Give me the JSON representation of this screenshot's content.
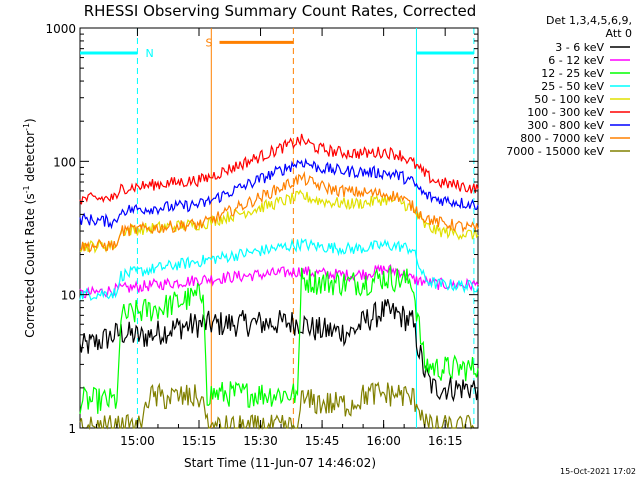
{
  "chart_data": {
    "type": "line",
    "title": "RHESSI Observing Summary Count Rates, Corrected",
    "xlabel": "Start Time (11-Jun-07 14:46:02)",
    "ylabel_main": "Corrected Count Rate (s",
    "ylabel_sup1": "-1",
    "ylabel_mid": " detector",
    "ylabel_sup2": "-1",
    "ylabel_end": ")",
    "x_unit": "minutes since 14:46:02",
    "xlim": [
      0,
      97
    ],
    "ylim": [
      1,
      1000
    ],
    "yscale": "log",
    "x_ticks": [
      {
        "value": 14,
        "label": "15:00"
      },
      {
        "value": 29,
        "label": "15:15"
      },
      {
        "value": 44,
        "label": "15:30"
      },
      {
        "value": 59,
        "label": "15:45"
      },
      {
        "value": 74,
        "label": "16:00"
      },
      {
        "value": 89,
        "label": "16:15"
      }
    ],
    "y_ticks": [
      {
        "value": 1,
        "label": "1"
      },
      {
        "value": 10,
        "label": "10"
      },
      {
        "value": 100,
        "label": "100"
      },
      {
        "value": 1000,
        "label": "1000"
      }
    ],
    "legend_header": [
      "Det 1,3,4,5,6,9,",
      "Att 0"
    ],
    "legend_position": "right",
    "series": [
      {
        "name": "3 - 6 keV",
        "color": "#000000",
        "points": [
          [
            0,
            4
          ],
          [
            5,
            4.5
          ],
          [
            10,
            5.2
          ],
          [
            15,
            4.8
          ],
          [
            20,
            5.3
          ],
          [
            25,
            5.8
          ],
          [
            30,
            6
          ],
          [
            54,
            6.2
          ],
          [
            57,
            5.5
          ],
          [
            62,
            5.3
          ],
          [
            66,
            5.2
          ],
          [
            70,
            6.5
          ],
          [
            74,
            7.5
          ],
          [
            78,
            7
          ],
          [
            81,
            6.2
          ],
          [
            84,
            2.6
          ],
          [
            86,
            2
          ],
          [
            97,
            2
          ]
        ]
      },
      {
        "name": "6 - 12 keV",
        "color": "#ff00ff",
        "points": [
          [
            0,
            10
          ],
          [
            5,
            10.5
          ],
          [
            10,
            11
          ],
          [
            15,
            11.5
          ],
          [
            20,
            12
          ],
          [
            25,
            12.5
          ],
          [
            30,
            13
          ],
          [
            54,
            15
          ],
          [
            58,
            14.5
          ],
          [
            62,
            14.2
          ],
          [
            66,
            14
          ],
          [
            70,
            14.5
          ],
          [
            74,
            15.5
          ],
          [
            78,
            15
          ],
          [
            81,
            13
          ],
          [
            84,
            12.5
          ],
          [
            87,
            12
          ],
          [
            97,
            11.8
          ]
        ]
      },
      {
        "name": "12 - 25 keV",
        "color": "#00ff00",
        "points": [
          [
            0,
            1.6
          ],
          [
            9,
            1.6
          ],
          [
            10,
            6.8
          ],
          [
            15,
            7.5
          ],
          [
            20,
            8
          ],
          [
            25,
            9
          ],
          [
            30,
            10
          ],
          [
            31,
            1.8
          ],
          [
            53,
            1.8
          ],
          [
            54,
            13
          ],
          [
            58,
            12.5
          ],
          [
            62,
            12.3
          ],
          [
            66,
            12.2
          ],
          [
            70,
            12.5
          ],
          [
            74,
            13.5
          ],
          [
            78,
            13
          ],
          [
            81,
            12.5
          ],
          [
            84,
            3
          ],
          [
            87,
            2.8
          ],
          [
            97,
            2.8
          ]
        ]
      },
      {
        "name": "25 - 50 keV",
        "color": "#00ffff",
        "points": [
          [
            0,
            10
          ],
          [
            9,
            10.3
          ],
          [
            10,
            14
          ],
          [
            15,
            15
          ],
          [
            20,
            16
          ],
          [
            25,
            17
          ],
          [
            30,
            18
          ],
          [
            54,
            24
          ],
          [
            58,
            23
          ],
          [
            62,
            22.5
          ],
          [
            66,
            22
          ],
          [
            70,
            22.5
          ],
          [
            74,
            23.5
          ],
          [
            78,
            23
          ],
          [
            81,
            22
          ],
          [
            84,
            13
          ],
          [
            87,
            12
          ],
          [
            97,
            11.5
          ]
        ]
      },
      {
        "name": "50 - 100 keV",
        "color": "#e0e000",
        "points": [
          [
            0,
            23
          ],
          [
            9,
            23.5
          ],
          [
            10,
            30
          ],
          [
            15,
            31
          ],
          [
            20,
            32
          ],
          [
            25,
            33
          ],
          [
            30,
            34
          ],
          [
            54,
            55
          ],
          [
            58,
            51
          ],
          [
            62,
            49
          ],
          [
            66,
            48
          ],
          [
            70,
            49
          ],
          [
            74,
            52
          ],
          [
            78,
            50
          ],
          [
            81,
            44
          ],
          [
            84,
            33
          ],
          [
            87,
            30
          ],
          [
            97,
            28
          ]
        ]
      },
      {
        "name": "100 - 300 keV",
        "color": "#ff0000",
        "points": [
          [
            0,
            52
          ],
          [
            9,
            53
          ],
          [
            10,
            63
          ],
          [
            15,
            65
          ],
          [
            20,
            68
          ],
          [
            25,
            70
          ],
          [
            30,
            73
          ],
          [
            54,
            145
          ],
          [
            58,
            125
          ],
          [
            62,
            118
          ],
          [
            66,
            115
          ],
          [
            70,
            115
          ],
          [
            74,
            118
          ],
          [
            78,
            112
          ],
          [
            81,
            98
          ],
          [
            84,
            80
          ],
          [
            87,
            70
          ],
          [
            97,
            62
          ]
        ]
      },
      {
        "name": "300 - 800 keV",
        "color": "#0000ff",
        "points": [
          [
            0,
            37
          ],
          [
            9,
            35
          ],
          [
            10,
            43
          ],
          [
            15,
            44
          ],
          [
            20,
            45
          ],
          [
            25,
            46
          ],
          [
            30,
            48
          ],
          [
            54,
            100
          ],
          [
            58,
            90
          ],
          [
            62,
            86
          ],
          [
            66,
            84
          ],
          [
            70,
            83
          ],
          [
            74,
            82
          ],
          [
            78,
            78
          ],
          [
            81,
            70
          ],
          [
            84,
            56
          ],
          [
            87,
            52
          ],
          [
            97,
            47
          ]
        ]
      },
      {
        "name": "800 - 7000 keV",
        "color": "#ff8000",
        "points": [
          [
            0,
            23
          ],
          [
            9,
            23.5
          ],
          [
            10,
            30
          ],
          [
            15,
            31
          ],
          [
            20,
            32
          ],
          [
            25,
            33
          ],
          [
            30,
            34
          ],
          [
            54,
            75
          ],
          [
            58,
            66
          ],
          [
            62,
            61
          ],
          [
            66,
            59
          ],
          [
            70,
            58
          ],
          [
            74,
            57
          ],
          [
            78,
            54
          ],
          [
            81,
            46
          ],
          [
            84,
            38
          ],
          [
            87,
            35
          ],
          [
            97,
            31
          ]
        ]
      },
      {
        "name": "7000 - 15000 keV",
        "color": "#808000",
        "points": [
          [
            0,
            1
          ],
          [
            15,
            1
          ],
          [
            16,
            1.7
          ],
          [
            20,
            1.7
          ],
          [
            25,
            1.7
          ],
          [
            30,
            1.7
          ],
          [
            31,
            1
          ],
          [
            53,
            1
          ],
          [
            54,
            1.6
          ],
          [
            62,
            1.5
          ],
          [
            66,
            1.5
          ],
          [
            70,
            1.8
          ],
          [
            74,
            1.8
          ],
          [
            78,
            1.8
          ],
          [
            82,
            1.6
          ],
          [
            85,
            1
          ],
          [
            97,
            1
          ]
        ]
      }
    ],
    "attenuator_bars": [
      {
        "label": "N",
        "x_start": 0,
        "x_end": 14,
        "color": "#00ffff"
      },
      {
        "label": "S",
        "x_start": 34,
        "x_end": 52,
        "color": "#ff8000"
      }
    ],
    "vertical_lines": [
      {
        "x": 14,
        "color": "#00ffff",
        "style": "dashed"
      },
      {
        "x": 32,
        "color": "#ff8000",
        "style": "solid"
      },
      {
        "x": 52,
        "color": "#ff8000",
        "style": "dashed"
      },
      {
        "x": 82,
        "color": "#00ffff",
        "style": "solid"
      },
      {
        "x": 96,
        "color": "#00ffff",
        "style": "dashed"
      }
    ],
    "extra_bars": [
      {
        "x_start": 82,
        "x_end": 96,
        "value": 650,
        "color": "#00ffff"
      }
    ]
  },
  "timestamp": "15-Oct-2021 17:02"
}
